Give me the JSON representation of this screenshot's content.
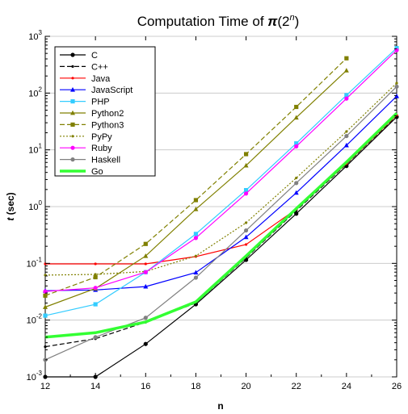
{
  "chart_data": {
    "type": "line",
    "title_main": "Computation Time of ",
    "title_pi": "π",
    "title_paren_open": "(2",
    "title_sup": "n",
    "title_paren_close": ")",
    "xlabel": "n",
    "ylabel_italic": "t",
    "ylabel_rest": " (sec)",
    "xlim": [
      12,
      26
    ],
    "ylim": [
      0.001,
      1000
    ],
    "yscale": "log",
    "x_ticks": [
      "12",
      "14",
      "16",
      "18",
      "20",
      "22",
      "24",
      "26"
    ],
    "y_ticks": [
      {
        "base": "10",
        "exp": "-3"
      },
      {
        "base": "10",
        "exp": "-2"
      },
      {
        "base": "10",
        "exp": "-1"
      },
      {
        "base": "10",
        "exp": "0"
      },
      {
        "base": "10",
        "exp": "1"
      },
      {
        "base": "10",
        "exp": "2"
      },
      {
        "base": "10",
        "exp": "3"
      }
    ],
    "legend_position": "top-left",
    "series": [
      {
        "name": "C",
        "color": "#000000",
        "dash": "",
        "width": 1.2,
        "marker": "circle",
        "x": [
          12,
          14,
          16,
          18,
          20,
          22,
          24,
          26
        ],
        "y": [
          0.001,
          0.001,
          0.0038,
          0.019,
          0.115,
          0.75,
          5.2,
          38
        ]
      },
      {
        "name": "C++",
        "color": "#000000",
        "dash": "6,3",
        "width": 1.2,
        "marker": "small",
        "x": [
          12,
          14,
          16,
          18,
          20,
          22,
          24,
          26
        ],
        "y": [
          0.0034,
          0.0047,
          0.0092,
          0.02,
          0.125,
          0.85,
          5.6,
          40
        ]
      },
      {
        "name": "Java",
        "color": "#ff0000",
        "dash": "",
        "width": 1.2,
        "marker": "small",
        "x": [
          12,
          14,
          16,
          18,
          20,
          22,
          24,
          26
        ],
        "y": [
          0.098,
          0.098,
          0.098,
          0.132,
          0.215,
          0.9,
          5.7,
          41
        ]
      },
      {
        "name": "JavaScript",
        "color": "#0000ff",
        "dash": "",
        "width": 1.2,
        "marker": "triangle",
        "x": [
          12,
          14,
          16,
          18,
          20,
          22,
          24,
          26
        ],
        "y": [
          0.033,
          0.034,
          0.039,
          0.069,
          0.29,
          1.75,
          12,
          88
        ]
      },
      {
        "name": "PHP",
        "color": "#33ccff",
        "dash": "",
        "width": 1.2,
        "marker": "square",
        "x": [
          12,
          14,
          16,
          18,
          20,
          22,
          24,
          26
        ],
        "y": [
          0.012,
          0.019,
          0.07,
          0.33,
          1.95,
          13,
          92,
          620
        ]
      },
      {
        "name": "Python2",
        "color": "#808000",
        "dash": "",
        "width": 1.2,
        "marker": "triangle",
        "x": [
          12,
          14,
          16,
          18,
          20,
          22,
          24
        ],
        "y": [
          0.017,
          0.036,
          0.135,
          0.9,
          5.3,
          37,
          250
        ]
      },
      {
        "name": "Python3",
        "color": "#808000",
        "dash": "6,3",
        "width": 1.2,
        "marker": "square",
        "x": [
          12,
          14,
          16,
          18,
          20,
          22,
          24
        ],
        "y": [
          0.027,
          0.057,
          0.22,
          1.3,
          8.4,
          57,
          410
        ]
      },
      {
        "name": "PyPy",
        "color": "#808000",
        "dash": "2,2",
        "width": 1.2,
        "marker": "small",
        "x": [
          12,
          14,
          16,
          18,
          20,
          22,
          24,
          26
        ],
        "y": [
          0.062,
          0.064,
          0.072,
          0.135,
          0.52,
          3.2,
          21,
          150
        ]
      },
      {
        "name": "Ruby",
        "color": "#ff00ff",
        "dash": "",
        "width": 1.2,
        "marker": "circle",
        "x": [
          12,
          14,
          16,
          18,
          20,
          22,
          24,
          26
        ],
        "y": [
          0.032,
          0.037,
          0.07,
          0.28,
          1.7,
          11.5,
          80,
          570
        ]
      },
      {
        "name": "Haskell",
        "color": "#808080",
        "dash": "",
        "width": 1.2,
        "marker": "circle",
        "x": [
          12,
          14,
          16,
          18,
          20,
          22,
          24,
          26
        ],
        "y": [
          0.002,
          0.005,
          0.011,
          0.056,
          0.38,
          2.6,
          17.5,
          130
        ]
      },
      {
        "name": "Go",
        "color": "#33ff33",
        "dash": "",
        "width": 3.5,
        "marker": "none",
        "x": [
          12,
          14,
          16,
          18,
          20,
          22,
          24,
          26
        ],
        "y": [
          0.005,
          0.006,
          0.0093,
          0.021,
          0.135,
          0.92,
          6.1,
          44
        ]
      }
    ]
  }
}
